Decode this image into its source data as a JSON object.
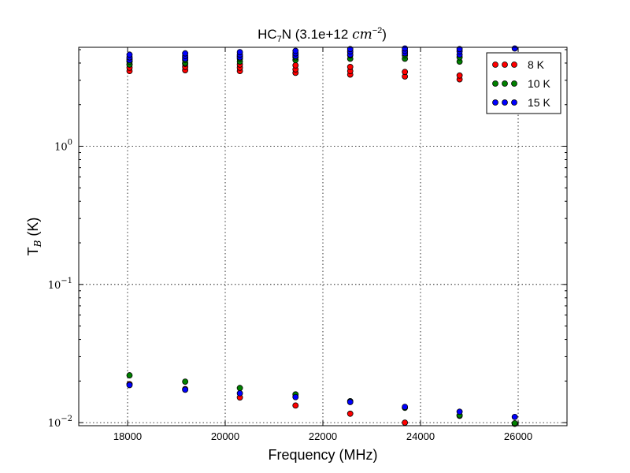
{
  "chart_data": {
    "type": "scatter",
    "title_main": "HC",
    "title_sub": "7",
    "title_after": "N (3.1e+12 ",
    "title_unit": "cm",
    "title_exp": "−2",
    "title_close": ")",
    "xlabel": "Frequency (MHz)",
    "ylabel_main": "T",
    "ylabel_sub": "B",
    "ylabel_after": " (K)",
    "xlim": [
      17000,
      27000
    ],
    "ylim": [
      0.0095,
      5.2
    ],
    "yscale": "log",
    "grid": true,
    "legend_position": "top-right",
    "x_ticks": [
      {
        "value": 18000,
        "label": "18000"
      },
      {
        "value": 20000,
        "label": "20000"
      },
      {
        "value": 22000,
        "label": "22000"
      },
      {
        "value": 24000,
        "label": "24000"
      },
      {
        "value": 26000,
        "label": "26000"
      }
    ],
    "y_ticks": [
      {
        "value": 0.01,
        "base": "10",
        "exp": "−2"
      },
      {
        "value": 0.1,
        "base": "10",
        "exp": "−1"
      },
      {
        "value": 1,
        "base": "10",
        "exp": "0"
      }
    ],
    "series": [
      {
        "name": "8 K",
        "color": "#ff0000",
        "points": [
          [
            18040,
            3.5
          ],
          [
            18040,
            3.7
          ],
          [
            18040,
            3.9
          ],
          [
            18040,
            4.1
          ],
          [
            18040,
            0.019
          ],
          [
            19180,
            3.55
          ],
          [
            19180,
            3.75
          ],
          [
            19180,
            3.95
          ],
          [
            19180,
            0.0175
          ],
          [
            20300,
            3.5
          ],
          [
            20300,
            3.7
          ],
          [
            20300,
            3.9
          ],
          [
            20300,
            0.0152
          ],
          [
            21440,
            3.4
          ],
          [
            21440,
            3.6
          ],
          [
            21440,
            3.85
          ],
          [
            21440,
            0.0133
          ],
          [
            22560,
            3.3
          ],
          [
            22560,
            3.5
          ],
          [
            22560,
            3.75
          ],
          [
            22560,
            0.0116
          ],
          [
            23680,
            3.2
          ],
          [
            23680,
            3.45
          ],
          [
            23680,
            0.01
          ],
          [
            24800,
            3.05
          ],
          [
            24800,
            3.25
          ],
          [
            24800,
            0.0112
          ],
          [
            25930,
            0.0098
          ]
        ]
      },
      {
        "name": "10 K",
        "color": "#008000",
        "points": [
          [
            18040,
            3.9
          ],
          [
            18040,
            4.1
          ],
          [
            18040,
            4.3
          ],
          [
            18040,
            0.022
          ],
          [
            19180,
            4.0
          ],
          [
            19180,
            4.2
          ],
          [
            19180,
            4.4
          ],
          [
            19180,
            0.0198
          ],
          [
            20300,
            4.1
          ],
          [
            20300,
            4.3
          ],
          [
            20300,
            4.5
          ],
          [
            20300,
            0.0178
          ],
          [
            21440,
            4.2
          ],
          [
            21440,
            4.4
          ],
          [
            21440,
            4.6
          ],
          [
            21440,
            0.016
          ],
          [
            22560,
            4.3
          ],
          [
            22560,
            4.55
          ],
          [
            22560,
            4.8
          ],
          [
            22560,
            0.0143
          ],
          [
            23680,
            4.3
          ],
          [
            23680,
            4.55
          ],
          [
            23680,
            4.85
          ],
          [
            23680,
            0.0128
          ],
          [
            24800,
            4.1
          ],
          [
            24800,
            4.4
          ],
          [
            24800,
            0.0113
          ],
          [
            25930,
            0.0099
          ]
        ]
      },
      {
        "name": "15 K",
        "color": "#0000ff",
        "points": [
          [
            18040,
            4.2
          ],
          [
            18040,
            4.4
          ],
          [
            18040,
            4.6
          ],
          [
            18040,
            0.0187
          ],
          [
            19180,
            4.3
          ],
          [
            19180,
            4.5
          ],
          [
            19180,
            4.7
          ],
          [
            19180,
            0.0173
          ],
          [
            20300,
            4.4
          ],
          [
            20300,
            4.6
          ],
          [
            20300,
            4.8
          ],
          [
            20300,
            0.0163
          ],
          [
            21440,
            4.5
          ],
          [
            21440,
            4.7
          ],
          [
            21440,
            4.9
          ],
          [
            21440,
            0.0153
          ],
          [
            22560,
            4.6
          ],
          [
            22560,
            4.85
          ],
          [
            22560,
            5.05
          ],
          [
            22560,
            0.0141
          ],
          [
            23680,
            4.7
          ],
          [
            23680,
            4.9
          ],
          [
            23680,
            5.1
          ],
          [
            23680,
            0.013
          ],
          [
            24800,
            4.6
          ],
          [
            24800,
            4.85
          ],
          [
            24800,
            5.05
          ],
          [
            24800,
            0.012
          ],
          [
            25930,
            5.1
          ],
          [
            25930,
            0.011
          ]
        ]
      }
    ]
  }
}
